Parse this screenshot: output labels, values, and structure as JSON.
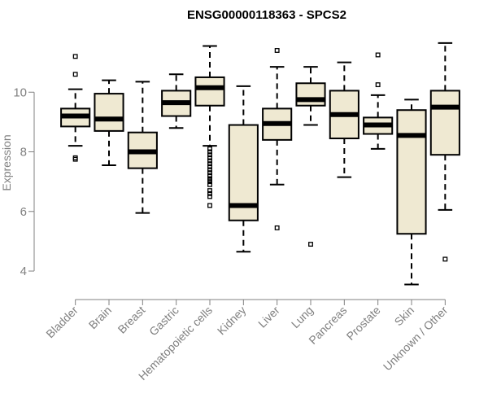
{
  "chart_data": {
    "type": "boxplot",
    "title": "ENSG00000118363 - SPCS2",
    "xlabel": "",
    "ylabel": "Expression",
    "ylim": [
      3.4,
      12.0
    ],
    "yticks": [
      4,
      6,
      8,
      10
    ],
    "colors": {
      "box_fill": "#EFE9D2",
      "line": "#000000",
      "axis_text": "#808080"
    },
    "categories": [
      "Bladder",
      "Brain",
      "Breast",
      "Gastric",
      "Hematopoietic cells",
      "Kidney",
      "Liver",
      "Lung",
      "Pancreas",
      "Prostate",
      "Skin",
      "Unknown / Other"
    ],
    "boxes": [
      {
        "name": "Bladder",
        "whisker_low": 8.2,
        "q1": 8.85,
        "median": 9.2,
        "q3": 9.45,
        "whisker_high": 10.1,
        "outliers": [
          11.2,
          10.6,
          7.8,
          7.75
        ]
      },
      {
        "name": "Brain",
        "whisker_low": 7.55,
        "q1": 8.7,
        "median": 9.1,
        "q3": 9.95,
        "whisker_high": 10.4,
        "outliers": []
      },
      {
        "name": "Breast",
        "whisker_low": 5.95,
        "q1": 7.45,
        "median": 8.0,
        "q3": 8.65,
        "whisker_high": 10.35,
        "outliers": []
      },
      {
        "name": "Gastric",
        "whisker_low": 8.8,
        "q1": 9.2,
        "median": 9.65,
        "q3": 10.05,
        "whisker_high": 10.6,
        "outliers": []
      },
      {
        "name": "Hematopoietic cells",
        "whisker_low": 8.2,
        "q1": 9.55,
        "median": 10.15,
        "q3": 10.5,
        "whisker_high": 11.55,
        "outliers": [
          8.1,
          8.0,
          7.9,
          7.8,
          7.7,
          7.6,
          7.5,
          7.4,
          7.3,
          7.2,
          7.1,
          7.05,
          7.0,
          6.9,
          6.7,
          6.6,
          6.5,
          6.2
        ]
      },
      {
        "name": "Kidney",
        "whisker_low": 4.65,
        "q1": 5.7,
        "median": 6.2,
        "q3": 8.9,
        "whisker_high": 10.2,
        "outliers": []
      },
      {
        "name": "Liver",
        "whisker_low": 6.9,
        "q1": 8.4,
        "median": 8.95,
        "q3": 9.45,
        "whisker_high": 10.85,
        "outliers": [
          11.4,
          5.45
        ]
      },
      {
        "name": "Lung",
        "whisker_low": 8.9,
        "q1": 9.55,
        "median": 9.75,
        "q3": 10.3,
        "whisker_high": 10.85,
        "outliers": [
          4.9
        ]
      },
      {
        "name": "Pancreas",
        "whisker_low": 7.15,
        "q1": 8.45,
        "median": 9.25,
        "q3": 10.05,
        "whisker_high": 11.0,
        "outliers": []
      },
      {
        "name": "Prostate",
        "whisker_low": 8.1,
        "q1": 8.6,
        "median": 8.9,
        "q3": 9.15,
        "whisker_high": 9.9,
        "outliers": [
          11.25,
          10.25
        ]
      },
      {
        "name": "Skin",
        "whisker_low": 3.55,
        "q1": 5.25,
        "median": 8.55,
        "q3": 9.4,
        "whisker_high": 9.75,
        "outliers": []
      },
      {
        "name": "Unknown / Other",
        "whisker_low": 6.05,
        "q1": 7.9,
        "median": 9.5,
        "q3": 10.05,
        "whisker_high": 11.65,
        "outliers": [
          4.4
        ]
      }
    ]
  }
}
